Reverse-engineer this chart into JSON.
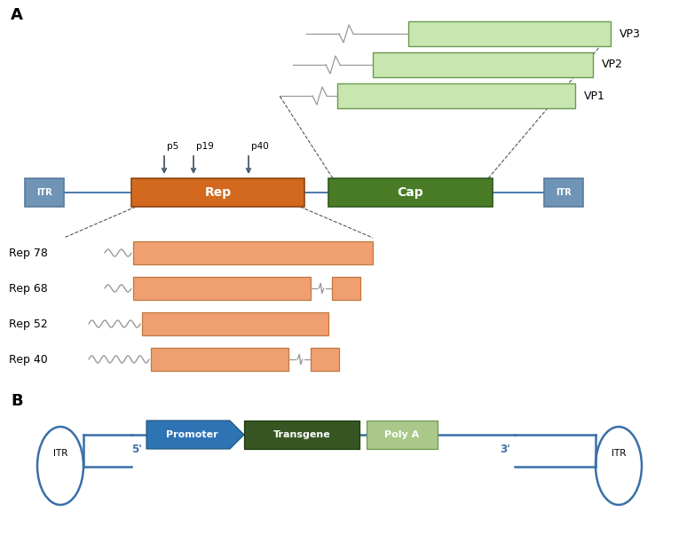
{
  "bg_color": "#ffffff",
  "itr_color": "#7094b5",
  "rep_color": "#d2691e",
  "cap_color": "#4a7c28",
  "rep_light_color": "#f0a070",
  "cap_light_color": "#c8e6b0",
  "promoter_color": "#2e74b5",
  "transgene_color": "#375623",
  "polya_color": "#a9c88a",
  "line_color": "#3a6fa8",
  "wavy_color": "#888888",
  "text_color": "#000000",
  "label_A": "A",
  "label_B": "B",
  "vp_labels": [
    "VP3",
    "VP2",
    "VP1"
  ],
  "rep_labels": [
    "Rep 78",
    "Rep 68",
    "Rep 52",
    "Rep 40"
  ],
  "promoter_labels": [
    "p5",
    "p19",
    "p40"
  ]
}
